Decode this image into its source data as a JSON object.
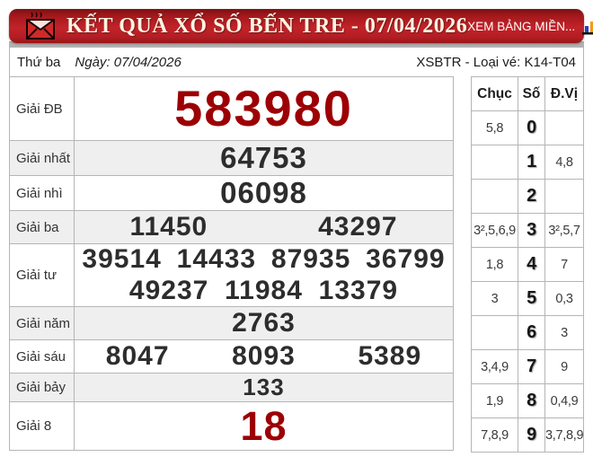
{
  "header": {
    "title": "KẾT QUẢ XỔ SỐ BẾN TRE - 07/04/2026",
    "link": "XEM BẢNG MIỀN...",
    "icons": [
      "envelope-icon",
      "bar-chart-icon"
    ],
    "colors": {
      "bar_red": "#c22329",
      "title_text": "#fdf4e3"
    }
  },
  "subheader": {
    "weekday": "Thứ ba",
    "date": "Ngày: 07/04/2026",
    "ticket": "XSBTR - Loại vé: K14-T04"
  },
  "prizes": [
    {
      "label": "Giải ĐB",
      "size": "xl",
      "highlight": true,
      "rows": [
        [
          "583980"
        ]
      ]
    },
    {
      "label": "Giải nhất",
      "size": "lg",
      "highlight": false,
      "rows": [
        [
          "64753"
        ]
      ]
    },
    {
      "label": "Giải nhì",
      "size": "lg",
      "highlight": false,
      "rows": [
        [
          "06098"
        ]
      ]
    },
    {
      "label": "Giải ba",
      "size": "md",
      "highlight": false,
      "rows": [
        [
          "11450",
          "43297"
        ]
      ]
    },
    {
      "label": "Giải tư",
      "size": "md",
      "highlight": false,
      "rows": [
        [
          "39514",
          "14433",
          "87935",
          "36799"
        ],
        [
          "49237",
          "11984",
          "13379"
        ]
      ]
    },
    {
      "label": "Giải năm",
      "size": "md",
      "highlight": false,
      "rows": [
        [
          "2763"
        ]
      ]
    },
    {
      "label": "Giải sáu",
      "size": "md",
      "highlight": false,
      "rows": [
        [
          "8047",
          "8093",
          "5389"
        ]
      ]
    },
    {
      "label": "Giải bảy",
      "size": "sm",
      "highlight": false,
      "rows": [
        [
          "133"
        ]
      ]
    },
    {
      "label": "Giải 8",
      "size": "xl2",
      "highlight": true,
      "rows": [
        [
          "18"
        ]
      ]
    }
  ],
  "stats": {
    "headers": [
      "Chục",
      "Số",
      "Đ.Vị"
    ],
    "rows": [
      {
        "chuc": "5,8",
        "so": "0",
        "dvi": ""
      },
      {
        "chuc": "",
        "so": "1",
        "dvi": "4,8"
      },
      {
        "chuc": "",
        "so": "2",
        "dvi": ""
      },
      {
        "chuc": "3²,5,6,9",
        "so": "3",
        "dvi": "3²,5,7"
      },
      {
        "chuc": "1,8",
        "so": "4",
        "dvi": "7"
      },
      {
        "chuc": "3",
        "so": "5",
        "dvi": "0,3"
      },
      {
        "chuc": "",
        "so": "6",
        "dvi": "3"
      },
      {
        "chuc": "3,4,9",
        "so": "7",
        "dvi": "9"
      },
      {
        "chuc": "1,9",
        "so": "8",
        "dvi": "0,4,9"
      },
      {
        "chuc": "7,8,9",
        "so": "9",
        "dvi": "3,7,8,9"
      }
    ]
  },
  "colors": {
    "accent_red": "#9c0004",
    "value_dark": "#2d2d2d",
    "row_alt": "#efefef",
    "table_border": "#b5b5b5",
    "gray_strip": "#b2b2b2"
  }
}
